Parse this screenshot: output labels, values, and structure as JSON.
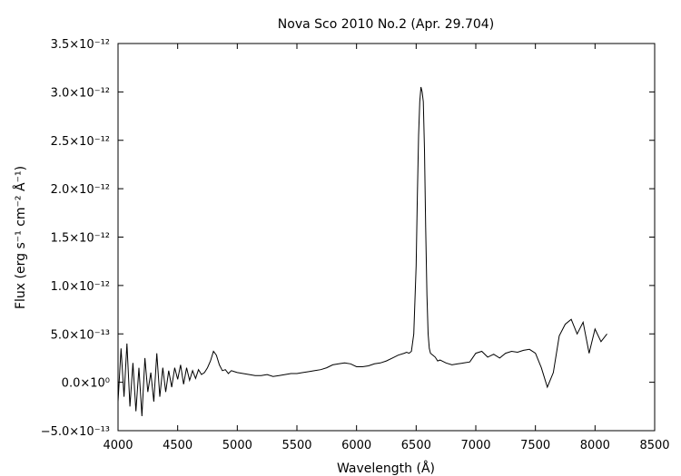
{
  "chart_data": {
    "type": "line",
    "title": "Nova Sco 2010 No.2 (Apr. 29.704)",
    "xlabel": "Wavelength (Å)",
    "ylabel": "Flux (erg s⁻¹ cm⁻² Å⁻¹)",
    "xlim": [
      4000,
      8500
    ],
    "ylim": [
      -5e-13,
      3.5e-12
    ],
    "x_ticks": [
      4000,
      4500,
      5000,
      5500,
      6000,
      6500,
      7000,
      7500,
      8000,
      8500
    ],
    "x_tick_labels": [
      "4000",
      "4500",
      "5000",
      "5500",
      "6000",
      "6500",
      "7000",
      "7500",
      "8000",
      "8500"
    ],
    "y_ticks": [
      -5e-13,
      0,
      5e-13,
      1e-12,
      1.5e-12,
      2e-12,
      2.5e-12,
      3e-12,
      3.5e-12
    ],
    "y_tick_labels": [
      "−5.0×10⁻¹³",
      "0.0×10⁰",
      "5.0×10⁻¹³",
      "1.0×10⁻¹²",
      "1.5×10⁻¹²",
      "2.0×10⁻¹²",
      "2.5×10⁻¹²",
      "3.0×10⁻¹²",
      "3.5×10⁻¹²"
    ],
    "grid": false,
    "series": [
      {
        "x": [
          4000,
          4025,
          4050,
          4075,
          4100,
          4125,
          4150,
          4175,
          4200,
          4225,
          4250,
          4275,
          4300,
          4325,
          4350,
          4375,
          4400,
          4425,
          4450,
          4475,
          4500,
          4525,
          4550,
          4575,
          4600,
          4625,
          4650,
          4675,
          4700,
          4725,
          4750,
          4775,
          4800,
          4825,
          4850,
          4875,
          4900,
          4925,
          4950,
          4975,
          5000,
          5050,
          5100,
          5150,
          5200,
          5250,
          5300,
          5350,
          5400,
          5450,
          5500,
          5550,
          5600,
          5650,
          5700,
          5750,
          5800,
          5850,
          5900,
          5950,
          6000,
          6050,
          6100,
          6150,
          6200,
          6250,
          6300,
          6350,
          6400,
          6420,
          6440,
          6460,
          6480,
          6500,
          6510,
          6520,
          6530,
          6540,
          6550,
          6560,
          6570,
          6580,
          6590,
          6600,
          6610,
          6620,
          6640,
          6660,
          6680,
          6700,
          6750,
          6800,
          6850,
          6900,
          6950,
          7000,
          7050,
          7100,
          7150,
          7200,
          7250,
          7300,
          7350,
          7400,
          7450,
          7500,
          7550,
          7600,
          7650,
          7700,
          7750,
          7800,
          7850,
          7900,
          7950,
          8000,
          8050,
          8100
        ],
        "y": [
          -2e-13,
          3.5e-13,
          -1.5e-13,
          4e-13,
          -2.5e-13,
          2e-13,
          -3e-13,
          1.5e-13,
          -3.5e-13,
          2.5e-13,
          -1e-13,
          1e-13,
          -2e-13,
          3e-13,
          -1.5e-13,
          1.5e-13,
          -1e-13,
          1.2e-13,
          -5e-14,
          1.5e-13,
          3e-14,
          1.8e-13,
          -2e-14,
          1.5e-13,
          2e-14,
          1.2e-13,
          4e-14,
          1.3e-13,
          8e-14,
          1e-13,
          1.5e-13,
          2.2e-13,
          3.2e-13,
          2.8e-13,
          1.8e-13,
          1.2e-13,
          1.3e-13,
          9e-14,
          1.2e-13,
          1.1e-13,
          1e-13,
          9e-14,
          8e-14,
          7e-14,
          7e-14,
          8e-14,
          6e-14,
          7e-14,
          8e-14,
          9e-14,
          9e-14,
          1e-13,
          1.1e-13,
          1.2e-13,
          1.3e-13,
          1.5e-13,
          1.8e-13,
          1.9e-13,
          2e-13,
          1.9e-13,
          1.6e-13,
          1.6e-13,
          1.7e-13,
          1.9e-13,
          2e-13,
          2.2e-13,
          2.5e-13,
          2.8e-13,
          3e-13,
          3.1e-13,
          3e-13,
          3.2e-13,
          5e-13,
          1.2e-12,
          1.9e-12,
          2.55e-12,
          2.9e-12,
          3.05e-12,
          3e-12,
          2.9e-12,
          2.4e-12,
          1.6e-12,
          9e-13,
          5e-13,
          3.5e-13,
          3e-13,
          2.8e-13,
          2.6e-13,
          2.2e-13,
          2.3e-13,
          2e-13,
          1.8e-13,
          1.9e-13,
          2e-13,
          2.1e-13,
          3e-13,
          3.2e-13,
          2.6e-13,
          2.9e-13,
          2.5e-13,
          3e-13,
          3.2e-13,
          3.1e-13,
          3.3e-13,
          3.4e-13,
          3e-13,
          1.5e-13,
          -5e-14,
          1e-13,
          4.8e-13,
          6e-13,
          6.5e-13,
          5e-13,
          6.2e-13,
          3e-13,
          5.5e-13,
          4.2e-13,
          5e-13
        ]
      }
    ]
  }
}
